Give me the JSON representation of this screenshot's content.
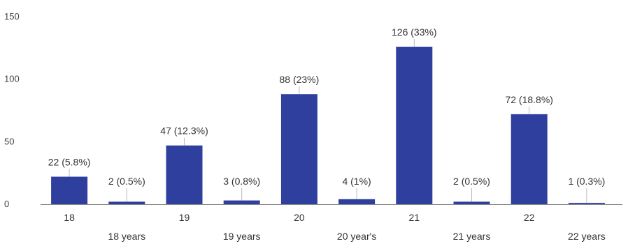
{
  "chart_data": {
    "type": "bar",
    "title": "",
    "xlabel": "",
    "ylabel": "",
    "ylim": [
      0,
      150
    ],
    "yticks": [
      0,
      50,
      100,
      150
    ],
    "grid": false,
    "legend": "none",
    "bar_color": "#2e3f9e",
    "categories": [
      "18",
      "18 years",
      "19",
      "19 years",
      "20",
      "20 year's",
      "21",
      "21 years",
      "22",
      "22 years"
    ],
    "values": [
      22,
      2,
      47,
      3,
      88,
      4,
      126,
      2,
      72,
      1
    ],
    "value_labels": [
      "22 (5.8%)",
      "2 (0.5%)",
      "47 (12.3%)",
      "3 (0.8%)",
      "88 (23%)",
      "4 (1%)",
      "126 (33%)",
      "2 (0.5%)",
      "72 (18.8%)",
      "1 (0.3%)"
    ]
  }
}
